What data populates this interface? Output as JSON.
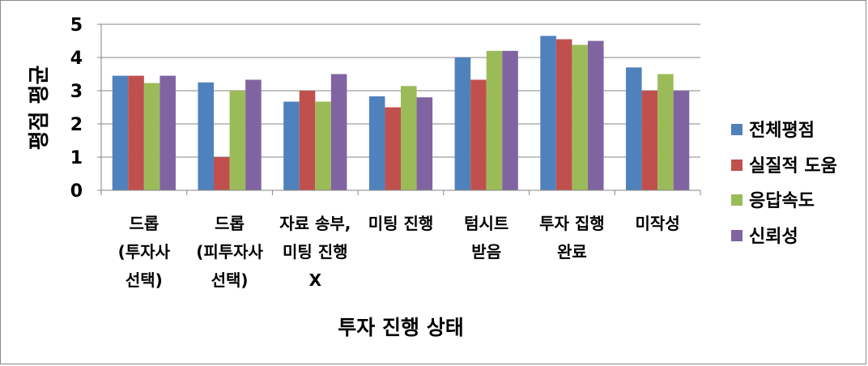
{
  "chart_data": {
    "type": "bar",
    "title": "",
    "xlabel": "투자 진행 상태",
    "ylabel": "평점 평균",
    "ylim": [
      0,
      5
    ],
    "yticks": [
      0,
      1,
      2,
      3,
      4,
      5
    ],
    "grid": true,
    "legend_position": "right",
    "categories": [
      "드롭\n(투자사\n선택)",
      "드롭\n(피투자사\n선택)",
      "자료 송부,\n미팅 진행\nX",
      "미팅 진행",
      "텀시트\n받음",
      "투자 집행\n완료",
      "미작성"
    ],
    "series": [
      {
        "name": "전체평점",
        "color": "#4F81BD",
        "values": [
          3.45,
          3.25,
          2.67,
          2.83,
          4.0,
          4.65,
          3.7
        ]
      },
      {
        "name": "실질적 도움",
        "color": "#C0504D",
        "values": [
          3.45,
          1.0,
          3.0,
          2.5,
          3.33,
          4.55,
          3.0
        ]
      },
      {
        "name": "응답속도",
        "color": "#9BBB59",
        "values": [
          3.23,
          3.0,
          2.67,
          3.14,
          4.2,
          4.38,
          3.5
        ]
      },
      {
        "name": "신뢰성",
        "color": "#8064A2",
        "values": [
          3.45,
          3.33,
          3.5,
          2.8,
          4.2,
          4.5,
          3.0
        ]
      }
    ]
  }
}
